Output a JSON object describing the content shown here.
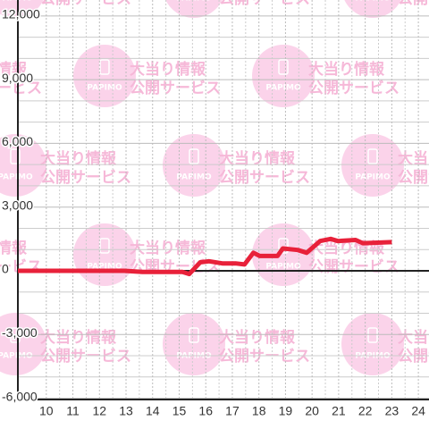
{
  "chart_data": {
    "type": "line",
    "watermark": {
      "logo": "PAPIMO",
      "line1": "大当り情報",
      "line2": "公開サービス"
    },
    "xlim": [
      8.93,
      24.4
    ],
    "xticks": [
      10,
      11,
      12,
      13,
      14,
      15,
      16,
      17,
      18,
      19,
      20,
      21,
      22,
      23,
      24
    ],
    "ylim": [
      -6060,
      12750
    ],
    "yticks": [
      {
        "value": -6000,
        "label": "-6,000"
      },
      {
        "value": -3000,
        "label": "-3,000"
      },
      0,
      {
        "value": 3000,
        "label": "3,000"
      },
      {
        "value": 6000,
        "label": "6,000"
      },
      {
        "value": 9000,
        "label": "9,000"
      },
      {
        "value": 12000,
        "label": "12,000"
      }
    ],
    "grid": true,
    "series": [
      {
        "color": "#e8213a",
        "x": [
          8.93,
          12.94,
          13.61,
          15.12,
          15.38,
          15.79,
          16.12,
          16.62,
          17.12,
          17.46,
          17.79,
          18.03,
          18.7,
          18.9,
          19.46,
          19.8,
          20.3,
          20.7,
          20.97,
          21.64,
          21.91,
          23.0
        ],
        "values": [
          0,
          0,
          -50,
          -50,
          -150,
          400,
          450,
          350,
          350,
          300,
          850,
          700,
          700,
          1050,
          980,
          850,
          1400,
          1500,
          1400,
          1450,
          1300,
          1350
        ]
      }
    ]
  }
}
